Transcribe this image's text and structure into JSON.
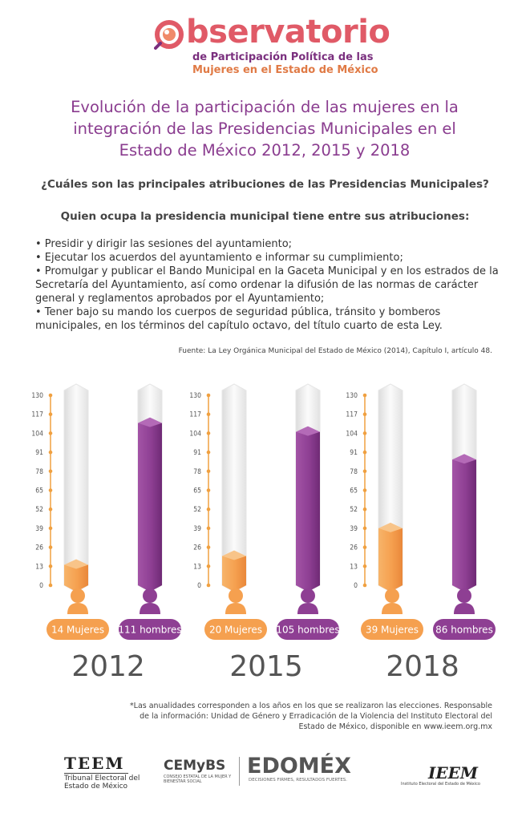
{
  "header": {
    "logo_word": "bservatorio",
    "logo_sub_1": "de Participación Política de las",
    "logo_sub_2": "Mujeres en el Estado de México"
  },
  "title_lines": [
    "Evolución de la participación de las mujeres en la",
    "integración de las Presidencias Municipales en el",
    "Estado de México 2012, 2015 y 2018"
  ],
  "question": "¿Cuáles son las principales atribuciones de las Presidencias Municipales?",
  "subquestion": "Quien ocupa la presidencia municipal tiene entre sus atribuciones:",
  "bullets": [
    "• Presidir y dirigir las sesiones del ayuntamiento;",
    "• Ejecutar los acuerdos del ayuntamiento e informar su cumplimiento;",
    "• Promulgar y publicar el Bando Municipal en la Gaceta Municipal y en los estrados de la Secretaría del Ayuntamiento, así como ordenar la difusión de las normas de carácter general y reglamentos aprobados por el Ayuntamiento;",
    "• Tener bajo su mando los cuerpos de seguridad pública, tránsito y bomberos municipales, en los términos del capítulo octavo, del título cuarto de esta Ley."
  ],
  "source": "Fuente: La Ley Orgánica Municipal del Estado de México (2014), Capítulo I, artículo 48.",
  "colors": {
    "women": "#f5a04f",
    "men": "#8e3f93",
    "title": "#8a3c8f",
    "axis": "#f0a040"
  },
  "chart_data": {
    "type": "bar",
    "ylim": [
      0,
      130
    ],
    "yticks": [
      "0",
      "13",
      "26",
      "39",
      "52",
      "65",
      "78",
      "91",
      "104",
      "117",
      "130"
    ],
    "panels": [
      {
        "year": "2012",
        "women": 14,
        "men": 111,
        "women_label": "14 Mujeres",
        "men_label": "111 hombres"
      },
      {
        "year": "2015",
        "women": 20,
        "men": 105,
        "women_label": "20 Mujeres",
        "men_label": "105 hombres"
      },
      {
        "year": "2018",
        "women": 39,
        "men": 86,
        "women_label": "39 Mujeres",
        "men_label": "86 hombres"
      }
    ]
  },
  "footnote": [
    "*Las anualidades corresponden a los años en los que se realizaron las elecciones. Responsable",
    "de la información: Unidad de Género y Erradicación de la Violencia del Instituto Electoral del",
    "Estado de México, disponible en www.ieem.org.mx"
  ],
  "footer": {
    "teem_name": "TEEM",
    "teem_sub": "Tribunal Electoral del Estado de México",
    "cemybs_name": "CEMyBS",
    "cemybs_sub": "CONSEJO ESTATAL DE LA MUJER Y BIENESTAR SOCIAL",
    "edomex_name": "EDOMÉX",
    "edomex_sub": "DECISIONES FIRMES, RESULTADOS FUERTES.",
    "ieem_name": "IEEM",
    "ieem_sub": "Instituto Electoral del Estado de México"
  }
}
